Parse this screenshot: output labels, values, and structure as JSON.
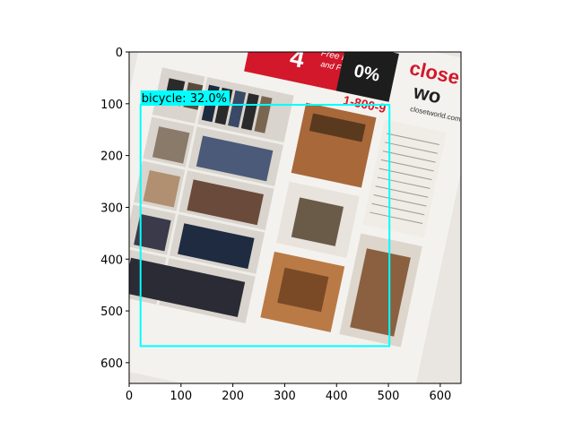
{
  "plot": {
    "x_ticks": [
      "0",
      "100",
      "200",
      "300",
      "400",
      "500",
      "600"
    ],
    "y_ticks": [
      "0",
      "100",
      "200",
      "300",
      "400",
      "500",
      "600"
    ],
    "x_range": [
      0,
      640
    ],
    "y_range": [
      0,
      640
    ],
    "y_inverted": true
  },
  "detection": {
    "label": "bicycle: 32.0%",
    "box": {
      "x1": 22,
      "y1": 102,
      "x2": 502,
      "y2": 568
    },
    "color": "#00ffff"
  },
  "image": {
    "description_visible_text": [
      "Free Fi",
      "and Fi",
      "0%",
      "1-800-9",
      "closetworld.com",
      "close",
      "wo"
    ],
    "accent_colors": {
      "red": "#d2182a",
      "paper": "#f3f1ee",
      "wood": "#a8683a",
      "navy": "#1e2b40"
    }
  }
}
